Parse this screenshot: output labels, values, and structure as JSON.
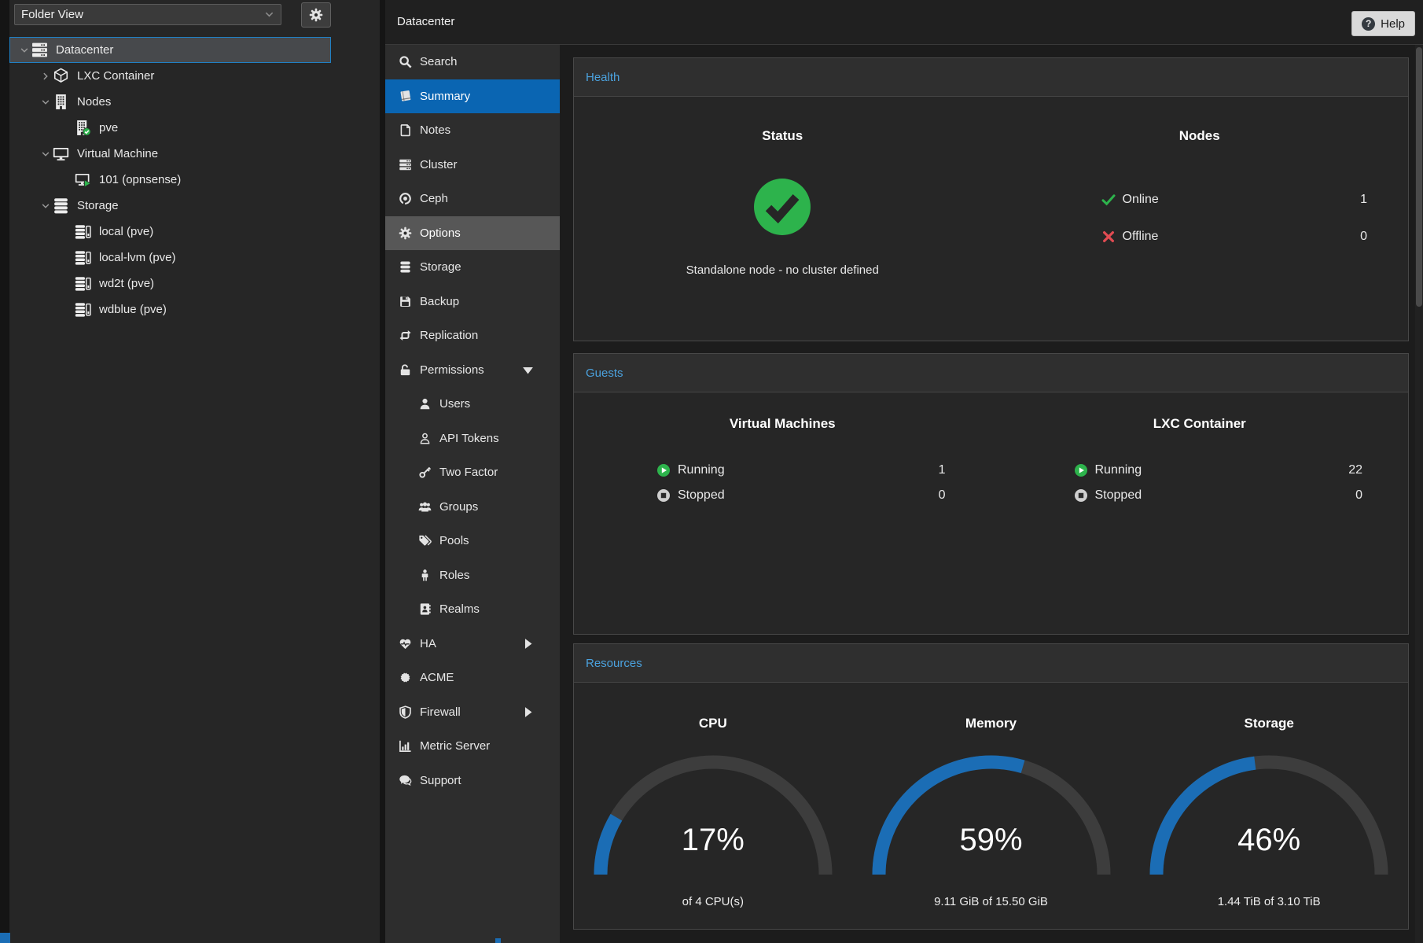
{
  "app": {
    "title": "Datacenter",
    "help_label": "Help"
  },
  "colors": {
    "accent_blue": "#0a65b2",
    "gauge_blue": "#1b6db5",
    "gauge_track": "#3d3d3d",
    "header_blue": "#4ba2de",
    "green": "#2db34c",
    "red": "#e14b52"
  },
  "tree_panel": {
    "view_selector": "Folder View",
    "gear_icon": "gear-icon",
    "items": [
      {
        "label": "Datacenter",
        "icon": "server-icon",
        "level": 0,
        "caret": "down",
        "selected": true
      },
      {
        "label": "LXC Container",
        "icon": "cube-icon",
        "level": 1,
        "caret": "right"
      },
      {
        "label": "Nodes",
        "icon": "building-icon",
        "level": 1,
        "caret": "down"
      },
      {
        "label": "pve",
        "icon": "node-online-icon",
        "level": 2,
        "caret": "none"
      },
      {
        "label": "Virtual Machine",
        "icon": "monitor-icon",
        "level": 1,
        "caret": "down"
      },
      {
        "label": "101 (opnsense)",
        "icon": "vm-running-icon",
        "level": 2,
        "caret": "none"
      },
      {
        "label": "Storage",
        "icon": "database-stack-icon",
        "level": 1,
        "caret": "down"
      },
      {
        "label": "local (pve)",
        "icon": "storage-disk-icon",
        "level": 2,
        "caret": "none"
      },
      {
        "label": "local-lvm (pve)",
        "icon": "storage-disk-icon",
        "level": 2,
        "caret": "none"
      },
      {
        "label": "wd2t (pve)",
        "icon": "storage-disk-icon",
        "level": 2,
        "caret": "none"
      },
      {
        "label": "wdblue (pve)",
        "icon": "storage-disk-icon",
        "level": 2,
        "caret": "none"
      }
    ]
  },
  "menu": {
    "items": [
      {
        "label": "Search",
        "icon": "search-icon"
      },
      {
        "label": "Summary",
        "icon": "book-icon",
        "selected": true
      },
      {
        "label": "Notes",
        "icon": "note-icon"
      },
      {
        "label": "Cluster",
        "icon": "cluster-icon"
      },
      {
        "label": "Ceph",
        "icon": "ceph-icon"
      },
      {
        "label": "Options",
        "icon": "gear-icon",
        "hover": true
      },
      {
        "label": "Storage",
        "icon": "database-icon"
      },
      {
        "label": "Backup",
        "icon": "floppy-icon"
      },
      {
        "label": "Replication",
        "icon": "replication-icon"
      },
      {
        "label": "Permissions",
        "icon": "unlock-icon",
        "caret": "down"
      },
      {
        "label": "Users",
        "icon": "user-icon",
        "sub": true
      },
      {
        "label": "API Tokens",
        "icon": "user-outline-icon",
        "sub": true
      },
      {
        "label": "Two Factor",
        "icon": "key-icon",
        "sub": true
      },
      {
        "label": "Groups",
        "icon": "group-icon",
        "sub": true
      },
      {
        "label": "Pools",
        "icon": "tags-icon",
        "sub": true
      },
      {
        "label": "Roles",
        "icon": "person-icon",
        "sub": true
      },
      {
        "label": "Realms",
        "icon": "address-book-icon",
        "sub": true
      },
      {
        "label": "HA",
        "icon": "heartbeat-icon",
        "caret": "right"
      },
      {
        "label": "ACME",
        "icon": "acme-icon"
      },
      {
        "label": "Firewall",
        "icon": "shield-icon",
        "caret": "right"
      },
      {
        "label": "Metric Server",
        "icon": "chart-icon"
      },
      {
        "label": "Support",
        "icon": "support-icon"
      }
    ]
  },
  "health": {
    "title": "Health",
    "status": {
      "title": "Status",
      "icon": "status-ok-icon",
      "message": "Standalone node - no cluster defined"
    },
    "nodes": {
      "title": "Nodes",
      "rows": [
        {
          "label": "Online",
          "value": "1",
          "icon": "online-icon"
        },
        {
          "label": "Offline",
          "value": "0",
          "icon": "offline-icon"
        }
      ]
    }
  },
  "guests": {
    "title": "Guests",
    "columns": [
      {
        "title": "Virtual Machines",
        "rows": [
          {
            "label": "Running",
            "value": "1",
            "icon": "running-icon"
          },
          {
            "label": "Stopped",
            "value": "0",
            "icon": "stopped-icon"
          }
        ]
      },
      {
        "title": "LXC Container",
        "rows": [
          {
            "label": "Running",
            "value": "22",
            "icon": "running-icon"
          },
          {
            "label": "Stopped",
            "value": "0",
            "icon": "stopped-icon"
          }
        ]
      }
    ]
  },
  "resources": {
    "title": "Resources",
    "chart_data": [
      {
        "type": "gauge",
        "title": "CPU",
        "percent": 17,
        "value_label": "17%",
        "sublabel": "of 4 CPU(s)"
      },
      {
        "type": "gauge",
        "title": "Memory",
        "percent": 59,
        "value_label": "59%",
        "sublabel": "9.11 GiB of 15.50 GiB"
      },
      {
        "type": "gauge",
        "title": "Storage",
        "percent": 46,
        "value_label": "46%",
        "sublabel": "1.44 TiB of 3.10 TiB"
      }
    ]
  }
}
